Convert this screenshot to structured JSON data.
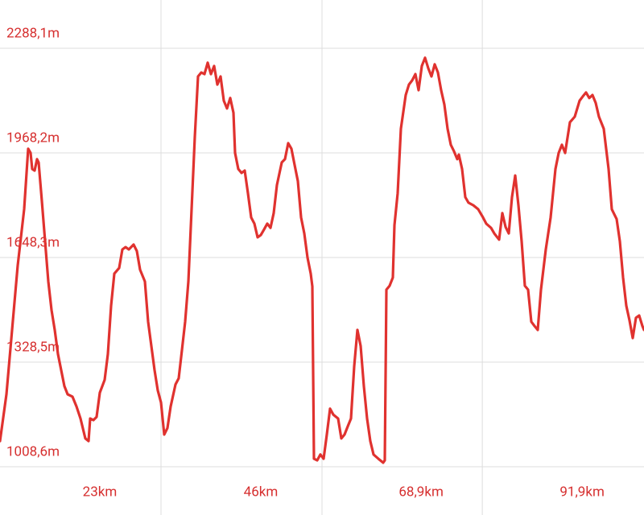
{
  "chart_data": {
    "type": "line",
    "xlim": [
      0,
      92
    ],
    "ylim": [
      861.0,
      2435.7
    ],
    "xticks": [
      {
        "value": 23,
        "label": "23km"
      },
      {
        "value": 46,
        "label": "46km"
      },
      {
        "value": 68.9,
        "label": "68,9km"
      },
      {
        "value": 91.9,
        "label": "91,9km"
      }
    ],
    "yticks": [
      {
        "value": 1008.6,
        "label": "1008,6m"
      },
      {
        "value": 1328.5,
        "label": "1328,5m"
      },
      {
        "value": 1648.3,
        "label": "1648,3m"
      },
      {
        "value": 1968.2,
        "label": "1968,2m"
      },
      {
        "value": 2288.1,
        "label": "2288,1m"
      }
    ],
    "grid": true,
    "series": [
      {
        "color": "#e0322f",
        "x": [
          0,
          0.92,
          1.73,
          2.53,
          3.45,
          4.03,
          4.37,
          4.6,
          4.95,
          5.29,
          5.52,
          5.98,
          6.44,
          6.9,
          7.36,
          7.82,
          8.28,
          8.74,
          9.2,
          9.66,
          10.35,
          10.93,
          11.5,
          12.19,
          12.65,
          12.88,
          13.34,
          13.8,
          14.26,
          14.95,
          15.41,
          15.87,
          16.33,
          17.02,
          17.48,
          17.94,
          18.4,
          19.09,
          19.55,
          20.01,
          20.7,
          21.16,
          21.62,
          22.08,
          22.54,
          23,
          23.46,
          23.92,
          24.38,
          25.07,
          25.53,
          25.99,
          26.45,
          26.91,
          27.37,
          27.83,
          28.29,
          28.75,
          29.21,
          29.67,
          30.13,
          30.59,
          31.05,
          31.51,
          31.97,
          32.43,
          32.89,
          33.35,
          33.58,
          34.04,
          34.5,
          34.96,
          35.42,
          35.88,
          36.34,
          36.8,
          37.26,
          37.72,
          38.18,
          38.64,
          39.1,
          39.56,
          40.25,
          40.71,
          41.17,
          41.63,
          42.09,
          42.55,
          43.01,
          43.47,
          43.93,
          44.39,
          44.62,
          44.85,
          45.31,
          45.77,
          46.23,
          46.69,
          47.15,
          47.61,
          48.3,
          48.76,
          49.22,
          49.68,
          50.14,
          50.6,
          51.06,
          51.52,
          51.98,
          52.44,
          52.9,
          53.36,
          54.05,
          54.74,
          54.97,
          55.2,
          55.66,
          56.12,
          56.35,
          56.81,
          57.27,
          57.96,
          58.42,
          58.88,
          59.34,
          59.8,
          60.26,
          60.72,
          61.18,
          61.64,
          62.1,
          62.56,
          63.02,
          63.48,
          63.94,
          64.4,
          64.86,
          65.32,
          65.55,
          66.01,
          66.47,
          66.93,
          67.62,
          68.31,
          69,
          69.46,
          70.15,
          70.61,
          71.3,
          71.76,
          72.22,
          72.68,
          73.14,
          73.6,
          74.06,
          74.52,
          74.98,
          75.44,
          75.9,
          76.36,
          76.82,
          77.28,
          77.97,
          78.66,
          79.35,
          79.81,
          80.27,
          80.73,
          81.42,
          82.11,
          82.8,
          83.26,
          83.72,
          84.18,
          84.64,
          85.1,
          85.56,
          86.25,
          86.94,
          87.4,
          88.09,
          88.55,
          89.01,
          89.47,
          89.93,
          90.39,
          90.85,
          91.31,
          91.77,
          92
        ],
        "values": [
          1087,
          1230,
          1427,
          1624,
          1796,
          1981,
          1968,
          1919,
          1914,
          1949,
          1939,
          1821,
          1698,
          1575,
          1488,
          1427,
          1353,
          1304,
          1255,
          1230,
          1223,
          1193,
          1156,
          1095,
          1087,
          1156,
          1151,
          1161,
          1235,
          1274,
          1353,
          1501,
          1599,
          1616,
          1673,
          1680,
          1673,
          1688,
          1668,
          1611,
          1575,
          1452,
          1378,
          1304,
          1242,
          1205,
          1107,
          1127,
          1193,
          1260,
          1279,
          1365,
          1452,
          1575,
          1796,
          2017,
          2202,
          2214,
          2209,
          2244,
          2209,
          2234,
          2177,
          2202,
          2128,
          2104,
          2136,
          2091,
          1968,
          1919,
          1907,
          1914,
          1845,
          1771,
          1752,
          1710,
          1717,
          1734,
          1752,
          1739,
          1784,
          1870,
          1939,
          1949,
          1998,
          1981,
          1931,
          1882,
          1771,
          1722,
          1648,
          1599,
          1560,
          1033,
          1028,
          1046,
          1033,
          1107,
          1186,
          1168,
          1156,
          1095,
          1107,
          1132,
          1156,
          1316,
          1427,
          1378,
          1255,
          1156,
          1087,
          1046,
          1033,
          1021,
          1028,
          1550,
          1562,
          1587,
          1747,
          1845,
          2042,
          2145,
          2177,
          2190,
          2209,
          2160,
          2234,
          2259,
          2227,
          2202,
          2239,
          2214,
          2160,
          2116,
          2042,
          1993,
          1973,
          1949,
          1963,
          1919,
          1833,
          1816,
          1808,
          1796,
          1771,
          1752,
          1739,
          1722,
          1703,
          1784,
          1742,
          1722,
          1833,
          1899,
          1808,
          1698,
          1562,
          1550,
          1452,
          1439,
          1427,
          1550,
          1673,
          1771,
          1919,
          1968,
          1993,
          1968,
          2062,
          2079,
          2128,
          2141,
          2153,
          2136,
          2145,
          2121,
          2079,
          2042,
          1919,
          1796,
          1766,
          1698,
          1587,
          1501,
          1456,
          1402,
          1464,
          1471,
          1439,
          1427
        ]
      }
    ]
  }
}
